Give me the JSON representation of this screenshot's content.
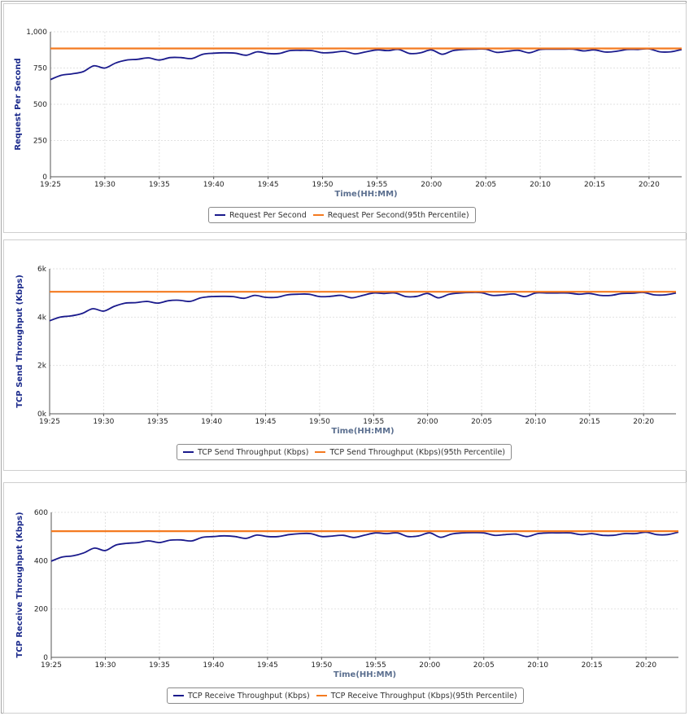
{
  "chart_data": [
    {
      "type": "line",
      "ylabel": "Request Per Second",
      "xlabel": "Time(HH:MM)",
      "ylim": [
        0,
        1000
      ],
      "yticks": [
        "0",
        "250",
        "500",
        "750",
        "1,000"
      ],
      "ytick_values": [
        0,
        250,
        500,
        750,
        1000
      ],
      "xlim": [
        "19:25",
        "20:23"
      ],
      "xticks": [
        "19:25",
        "19:30",
        "19:35",
        "19:40",
        "19:45",
        "19:50",
        "19:55",
        "20:00",
        "20:05",
        "20:10",
        "20:15",
        "20:20"
      ],
      "grid": true,
      "legend": "bottom-center",
      "series": [
        {
          "name": "Request Per Second",
          "color": "#1a1a8c",
          "x": [
            "19:25",
            "19:26",
            "19:27",
            "19:28",
            "19:29",
            "19:30",
            "19:31",
            "19:32",
            "19:33",
            "19:34",
            "19:35",
            "19:36",
            "19:37",
            "19:38",
            "19:39",
            "19:40",
            "19:41",
            "19:42",
            "19:43",
            "19:44",
            "19:45",
            "19:46",
            "19:47",
            "19:48",
            "19:49",
            "19:50",
            "19:51",
            "19:52",
            "19:53",
            "19:54",
            "19:55",
            "19:56",
            "19:57",
            "19:58",
            "19:59",
            "20:00",
            "20:01",
            "20:02",
            "20:03",
            "20:04",
            "20:05",
            "20:06",
            "20:07",
            "20:08",
            "20:09",
            "20:10",
            "20:11",
            "20:12",
            "20:13",
            "20:14",
            "20:15",
            "20:16",
            "20:17",
            "20:18",
            "20:19",
            "20:20",
            "20:21",
            "20:22",
            "20:23"
          ],
          "values": [
            670,
            700,
            710,
            725,
            765,
            750,
            785,
            805,
            810,
            820,
            805,
            822,
            822,
            815,
            845,
            852,
            855,
            852,
            838,
            862,
            850,
            850,
            870,
            872,
            870,
            855,
            858,
            865,
            848,
            862,
            875,
            870,
            878,
            850,
            855,
            875,
            845,
            870,
            878,
            880,
            880,
            858,
            865,
            872,
            855,
            878,
            880,
            880,
            880,
            868,
            875,
            860,
            865,
            878,
            878,
            882,
            862,
            862,
            878
          ]
        },
        {
          "name": "Request Per Second(95th Percentile)",
          "color": "#f47a20",
          "x": [
            "19:25",
            "20:23"
          ],
          "values": [
            885,
            885
          ]
        }
      ]
    },
    {
      "type": "line",
      "ylabel": "TCP Send Throughput (Kbps)",
      "xlabel": "Time(HH:MM)",
      "ylim": [
        0,
        6000
      ],
      "yticks": [
        "0k",
        "2k",
        "4k",
        "6k"
      ],
      "ytick_values": [
        0,
        2000,
        4000,
        6000
      ],
      "xlim": [
        "19:25",
        "20:23"
      ],
      "xticks": [
        "19:25",
        "19:30",
        "19:35",
        "19:40",
        "19:45",
        "19:50",
        "19:55",
        "20:00",
        "20:05",
        "20:10",
        "20:15",
        "20:20"
      ],
      "grid": true,
      "legend": "bottom-center",
      "series": [
        {
          "name": "TCP Send Throughput (Kbps)",
          "color": "#1a1a8c",
          "x": [
            "19:25",
            "19:26",
            "19:27",
            "19:28",
            "19:29",
            "19:30",
            "19:31",
            "19:32",
            "19:33",
            "19:34",
            "19:35",
            "19:36",
            "19:37",
            "19:38",
            "19:39",
            "19:40",
            "19:41",
            "19:42",
            "19:43",
            "19:44",
            "19:45",
            "19:46",
            "19:47",
            "19:48",
            "19:49",
            "19:50",
            "19:51",
            "19:52",
            "19:53",
            "19:54",
            "19:55",
            "19:56",
            "19:57",
            "19:58",
            "19:59",
            "20:00",
            "20:01",
            "20:02",
            "20:03",
            "20:04",
            "20:05",
            "20:06",
            "20:07",
            "20:08",
            "20:09",
            "20:10",
            "20:11",
            "20:12",
            "20:13",
            "20:14",
            "20:15",
            "20:16",
            "20:17",
            "20:18",
            "20:19",
            "20:20",
            "20:21",
            "20:22",
            "20:23"
          ],
          "values": [
            3850,
            4000,
            4050,
            4150,
            4350,
            4250,
            4450,
            4580,
            4600,
            4650,
            4580,
            4680,
            4700,
            4650,
            4800,
            4850,
            4860,
            4850,
            4780,
            4900,
            4820,
            4820,
            4920,
            4950,
            4950,
            4850,
            4860,
            4900,
            4800,
            4900,
            5000,
            4980,
            5000,
            4850,
            4860,
            4980,
            4800,
            4950,
            5000,
            5020,
            5010,
            4900,
            4920,
            4960,
            4850,
            5000,
            5000,
            5000,
            5000,
            4950,
            4980,
            4900,
            4900,
            4980,
            4990,
            5020,
            4920,
            4920,
            5000
          ]
        },
        {
          "name": "TCP Send Throughput (Kbps)(95th Percentile)",
          "color": "#f47a20",
          "x": [
            "19:25",
            "20:23"
          ],
          "values": [
            5050,
            5050
          ]
        }
      ]
    },
    {
      "type": "line",
      "ylabel": "TCP Receive Throughput (Kbps)",
      "xlabel": "Time(HH:MM)",
      "ylim": [
        0,
        600
      ],
      "yticks": [
        "0",
        "200",
        "400",
        "600"
      ],
      "ytick_values": [
        0,
        200,
        400,
        600
      ],
      "xlim": [
        "19:25",
        "20:23"
      ],
      "xticks": [
        "19:25",
        "19:30",
        "19:35",
        "19:40",
        "19:45",
        "19:50",
        "19:55",
        "20:00",
        "20:05",
        "20:10",
        "20:15",
        "20:20"
      ],
      "grid": true,
      "legend": "bottom-center",
      "series": [
        {
          "name": "TCP Receive Throughput (Kbps)",
          "color": "#1a1a8c",
          "x": [
            "19:25",
            "19:26",
            "19:27",
            "19:28",
            "19:29",
            "19:30",
            "19:31",
            "19:32",
            "19:33",
            "19:34",
            "19:35",
            "19:36",
            "19:37",
            "19:38",
            "19:39",
            "19:40",
            "19:41",
            "19:42",
            "19:43",
            "19:44",
            "19:45",
            "19:46",
            "19:47",
            "19:48",
            "19:49",
            "19:50",
            "19:51",
            "19:52",
            "19:53",
            "19:54",
            "19:55",
            "19:56",
            "19:57",
            "19:58",
            "19:59",
            "20:00",
            "20:01",
            "20:02",
            "20:03",
            "20:04",
            "20:05",
            "20:06",
            "20:07",
            "20:08",
            "20:09",
            "20:10",
            "20:11",
            "20:12",
            "20:13",
            "20:14",
            "20:15",
            "20:16",
            "20:17",
            "20:18",
            "20:19",
            "20:20",
            "20:21",
            "20:22",
            "20:23"
          ],
          "values": [
            398,
            415,
            420,
            432,
            452,
            442,
            465,
            472,
            475,
            482,
            475,
            485,
            486,
            482,
            497,
            500,
            503,
            500,
            492,
            506,
            500,
            500,
            508,
            512,
            512,
            500,
            502,
            505,
            496,
            506,
            515,
            512,
            515,
            500,
            503,
            515,
            497,
            510,
            515,
            516,
            515,
            505,
            508,
            510,
            500,
            512,
            515,
            515,
            515,
            508,
            512,
            505,
            505,
            512,
            512,
            518,
            508,
            508,
            518
          ]
        },
        {
          "name": "TCP Receive Throughput (Kbps)(95th Percentile)",
          "color": "#f47a20",
          "x": [
            "19:25",
            "20:23"
          ],
          "values": [
            522,
            522
          ]
        }
      ]
    }
  ]
}
